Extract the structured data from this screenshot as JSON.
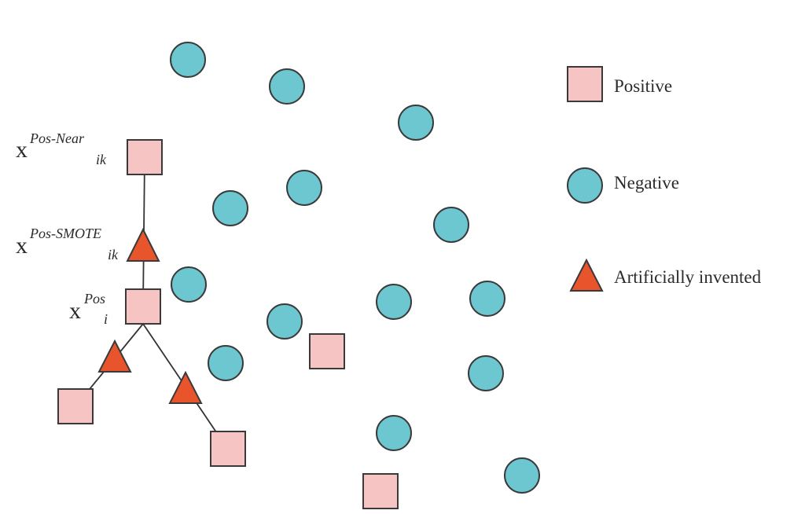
{
  "colors": {
    "positive_fill": "#f7c4c4",
    "negative_fill": "#6cc7d1",
    "artificial_fill": "#e8552c",
    "outline": "#3a3a3a",
    "line": "#333333"
  },
  "legend": {
    "positive": "Positive",
    "negative": "Negative",
    "artificial": "Artificially invented"
  },
  "labels": {
    "x_near": {
      "base": "x",
      "sup": "Pos-Near",
      "sub": "ik"
    },
    "x_smote": {
      "base": "x",
      "sup": "Pos-SMOTE",
      "sub": "ik"
    },
    "x_pos": {
      "base": "x",
      "sup": "Pos",
      "sub": "i"
    }
  }
}
